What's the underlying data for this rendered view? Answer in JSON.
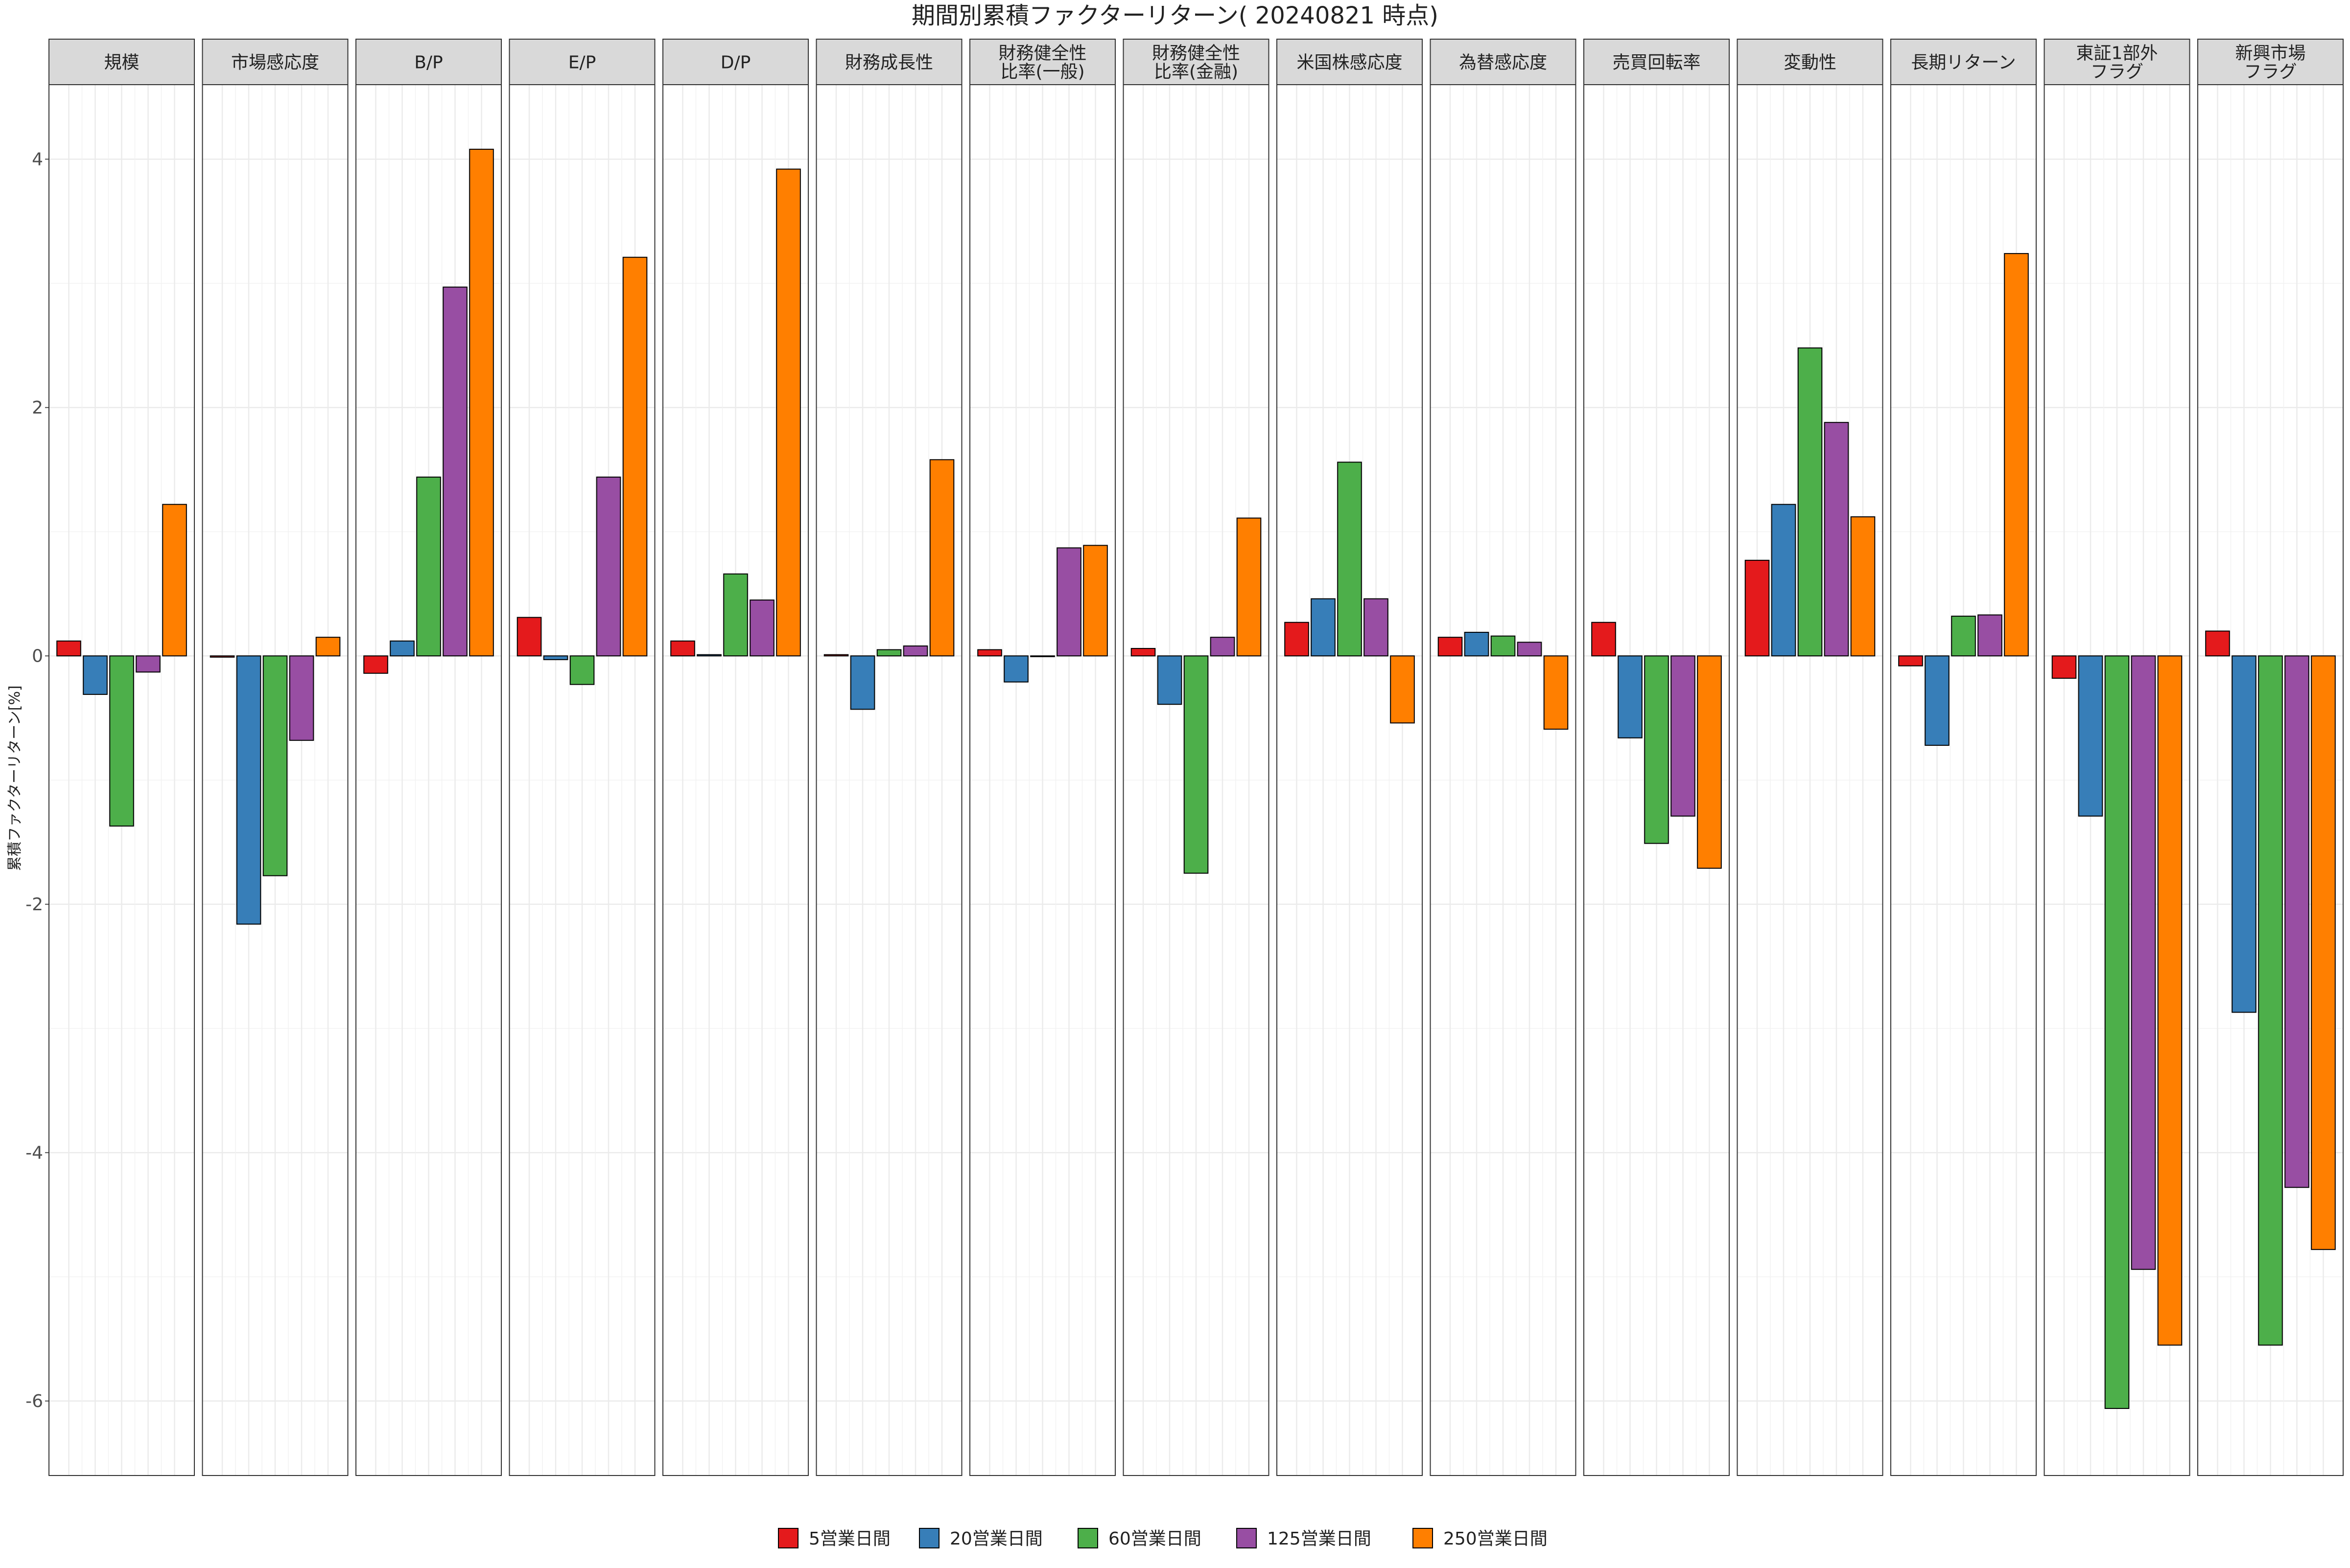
{
  "chart_data": {
    "type": "bar",
    "title": "期間別累積ファクターリターン( 20240821 時点)",
    "ylabel": "累積ファクターリターン[%]",
    "xlabel": "",
    "ylim": [
      -6.6,
      4.6
    ],
    "yticks": [
      4,
      2,
      0,
      -2,
      -4,
      -6
    ],
    "grid": true,
    "legend_position": "bottom",
    "facets": [
      {
        "label": [
          "規模"
        ],
        "values": [
          0.12,
          -0.31,
          -1.37,
          -0.13,
          1.22
        ]
      },
      {
        "label": [
          "市場感応度"
        ],
        "values": [
          -0.01,
          -2.16,
          -1.77,
          -0.68,
          0.15
        ]
      },
      {
        "label": [
          "B/P"
        ],
        "values": [
          -0.14,
          0.12,
          1.44,
          2.97,
          4.08
        ]
      },
      {
        "label": [
          "E/P"
        ],
        "values": [
          0.31,
          -0.03,
          -0.23,
          1.44,
          3.21
        ]
      },
      {
        "label": [
          "D/P"
        ],
        "values": [
          0.12,
          0.01,
          0.66,
          0.45,
          3.92
        ]
      },
      {
        "label": [
          "財務成長性"
        ],
        "values": [
          0.01,
          -0.43,
          0.05,
          0.08,
          1.58
        ]
      },
      {
        "label": [
          "財務健全性",
          "比率(一般)"
        ],
        "values": [
          0.05,
          -0.21,
          0.0,
          0.87,
          0.89
        ]
      },
      {
        "label": [
          "財務健全性",
          "比率(金融)"
        ],
        "values": [
          0.06,
          -0.39,
          -1.75,
          0.15,
          1.11
        ]
      },
      {
        "label": [
          "米国株感応度"
        ],
        "values": [
          0.27,
          0.46,
          1.56,
          0.46,
          -0.54
        ]
      },
      {
        "label": [
          "為替感応度"
        ],
        "values": [
          0.15,
          0.19,
          0.16,
          0.11,
          -0.59
        ]
      },
      {
        "label": [
          "売買回転率"
        ],
        "values": [
          0.27,
          -0.66,
          -1.51,
          -1.29,
          -1.71
        ]
      },
      {
        "label": [
          "変動性"
        ],
        "values": [
          0.77,
          1.22,
          2.48,
          1.88,
          1.12
        ]
      },
      {
        "label": [
          "長期リターン"
        ],
        "values": [
          -0.08,
          -0.72,
          0.32,
          0.33,
          3.24
        ]
      },
      {
        "label": [
          "東証1部外",
          "フラグ"
        ],
        "values": [
          -0.18,
          -1.29,
          -6.06,
          -4.94,
          -5.55
        ]
      },
      {
        "label": [
          "新興市場",
          "フラグ"
        ],
        "values": [
          0.2,
          -2.87,
          -5.55,
          -4.28,
          -4.78
        ]
      }
    ],
    "series": [
      {
        "name": "5営業日間",
        "color": "#e41a1c"
      },
      {
        "name": "20営業日間",
        "color": "#377eb8"
      },
      {
        "name": "60営業日間",
        "color": "#4daf4a"
      },
      {
        "name": "125営業日間",
        "color": "#984ea3"
      },
      {
        "name": "250営業日間",
        "color": "#ff7f00"
      }
    ]
  }
}
